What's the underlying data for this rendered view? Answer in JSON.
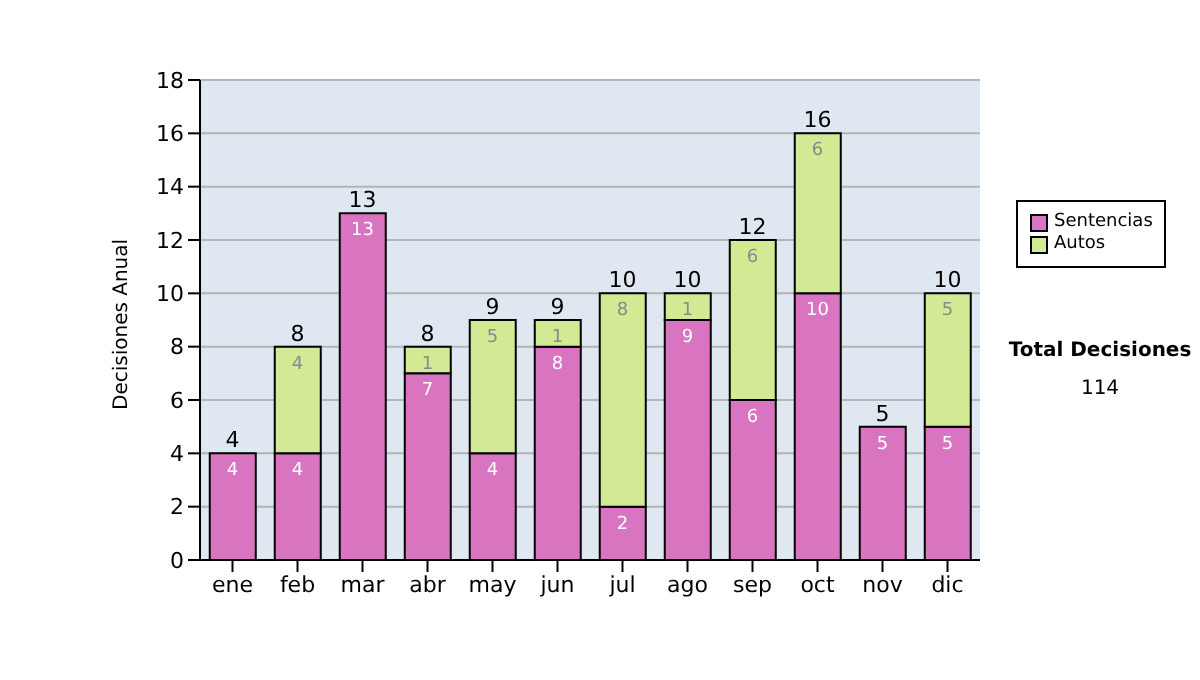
{
  "chart_data": {
    "type": "bar",
    "ylabel": "Decisiones Anual",
    "categories": [
      "ene",
      "feb",
      "mar",
      "abr",
      "may",
      "jun",
      "jul",
      "ago",
      "sep",
      "oct",
      "nov",
      "dic"
    ],
    "stacked": true,
    "ylim": [
      0,
      18
    ],
    "yticks": [
      0,
      2,
      4,
      6,
      8,
      10,
      12,
      14,
      16,
      18
    ],
    "grid": "y",
    "legend": "right",
    "series": [
      {
        "name": "Sentencias",
        "color": "#d874c0",
        "values": [
          4,
          4,
          13,
          7,
          4,
          8,
          2,
          9,
          6,
          10,
          5,
          5
        ],
        "value_labels": [
          "4",
          "4",
          "13",
          "7",
          "4",
          "8",
          "2",
          "9",
          "6",
          "10",
          "5",
          "5"
        ]
      },
      {
        "name": "Autos",
        "color": "#d3ea94",
        "values": [
          0,
          4,
          0,
          1,
          5,
          1,
          8,
          1,
          6,
          6,
          0,
          5
        ],
        "value_labels": [
          null,
          "4",
          null,
          "1",
          "5",
          "1",
          "8",
          "1",
          "6",
          "6",
          null,
          "5"
        ]
      }
    ],
    "totals": [
      "4",
      "8",
      "13",
      "8",
      "9",
      "9",
      "10",
      "10",
      "12",
      "16",
      "5",
      "10"
    ],
    "annotations": [
      "Total Decisiones",
      "114"
    ]
  }
}
